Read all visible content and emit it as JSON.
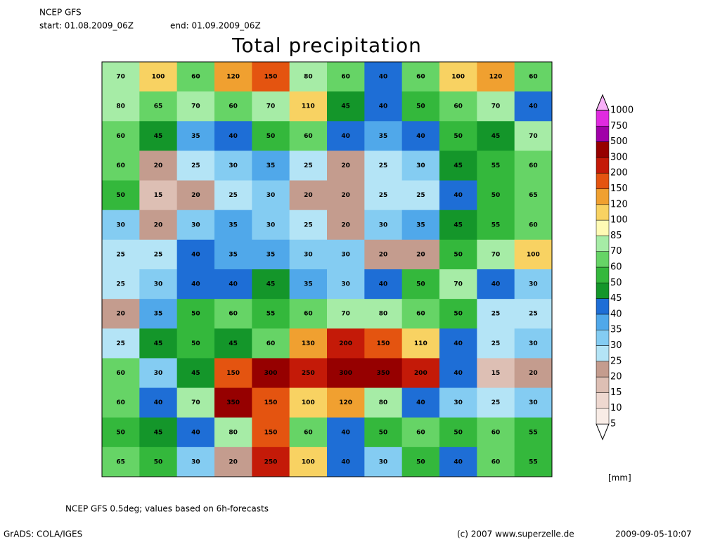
{
  "header": {
    "model": "NCEP GFS",
    "start": "start: 01.08.2009_06Z",
    "end": "end: 01.09.2009_06Z"
  },
  "title": "Total precipitation",
  "legend": {
    "unit": "[mm]",
    "levels": [
      5,
      10,
      15,
      20,
      25,
      30,
      35,
      40,
      45,
      50,
      60,
      70,
      85,
      100,
      120,
      150,
      200,
      300,
      500,
      750,
      1000
    ],
    "colors": [
      "#ffffff",
      "#f8ece6",
      "#eed8d0",
      "#ddbfb4",
      "#c49c8e",
      "#b4e4f6",
      "#84ccf2",
      "#50a8ea",
      "#1e6ed6",
      "#14962a",
      "#34b83c",
      "#66d466",
      "#a6eca6",
      "#fffab4",
      "#f8d262",
      "#f0a030",
      "#e45410",
      "#c41a08",
      "#960000",
      "#a000a8",
      "#e02ae0",
      "#f8b0f8"
    ]
  },
  "map": {
    "values": [
      [
        70,
        100,
        60,
        120,
        150,
        80,
        60,
        40,
        60,
        100,
        120,
        60
      ],
      [
        80,
        65,
        70,
        60,
        70,
        110,
        45,
        40,
        50,
        60,
        70,
        40
      ],
      [
        60,
        45,
        35,
        40,
        50,
        60,
        40,
        35,
        40,
        50,
        45,
        70
      ],
      [
        60,
        20,
        25,
        30,
        35,
        25,
        20,
        25,
        30,
        45,
        55,
        60
      ],
      [
        50,
        15,
        20,
        25,
        30,
        20,
        20,
        25,
        25,
        40,
        50,
        65
      ],
      [
        30,
        20,
        30,
        35,
        30,
        25,
        20,
        30,
        35,
        45,
        55,
        60
      ],
      [
        25,
        25,
        40,
        35,
        35,
        30,
        30,
        20,
        20,
        50,
        70,
        100
      ],
      [
        25,
        30,
        40,
        40,
        45,
        35,
        30,
        40,
        50,
        70,
        40,
        30
      ],
      [
        20,
        35,
        50,
        60,
        55,
        60,
        70,
        80,
        60,
        50,
        25,
        25
      ],
      [
        25,
        45,
        50,
        45,
        60,
        130,
        200,
        150,
        110,
        40,
        25,
        30
      ],
      [
        60,
        30,
        45,
        150,
        300,
        250,
        300,
        350,
        200,
        40,
        15,
        20
      ],
      [
        60,
        40,
        70,
        350,
        150,
        100,
        120,
        80,
        40,
        30,
        25,
        30
      ],
      [
        50,
        45,
        40,
        80,
        150,
        60,
        40,
        50,
        60,
        50,
        60,
        55
      ],
      [
        65,
        50,
        30,
        20,
        250,
        100,
        40,
        30,
        50,
        40,
        60,
        55
      ]
    ]
  },
  "footer": {
    "note": "NCEP GFS 0.5deg; values based on 6h-forecasts",
    "software": "GrADS: COLA/IGES",
    "copyright": "(c) 2007 www.superzelle.de",
    "timestamp": "2009-09-05-10:07"
  }
}
